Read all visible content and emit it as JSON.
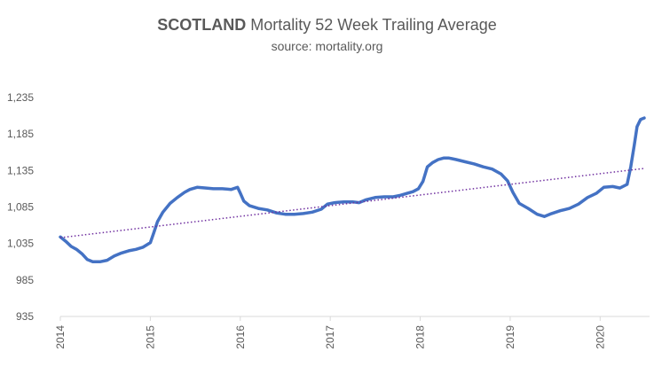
{
  "chart_data": {
    "type": "line",
    "title_bold": "SCOTLAND",
    "title_rest": " Mortality 52 Week Trailing Average",
    "subtitle": "source: mortality.org",
    "y_ticks": [
      935,
      985,
      1035,
      1085,
      1135,
      1185,
      1235
    ],
    "y_tick_labels": [
      "935",
      "985",
      "1,035",
      "1,085",
      "1,135",
      "1,185",
      "1,235"
    ],
    "x_ticks": [
      2014,
      2015,
      2016,
      2017,
      2018,
      2019,
      2020
    ],
    "x_tick_labels": [
      "2014",
      "2015",
      "2016",
      "2017",
      "2018",
      "2019",
      "2020"
    ],
    "xlim": [
      2014,
      2020.5
    ],
    "ylim": [
      935,
      1235
    ],
    "grid": false,
    "legend": "none",
    "series": [
      {
        "kind": "data",
        "color": "#4472c4",
        "points": [
          [
            2014.0,
            1044
          ],
          [
            2014.06,
            1038
          ],
          [
            2014.12,
            1031
          ],
          [
            2014.18,
            1027
          ],
          [
            2014.24,
            1021
          ],
          [
            2014.3,
            1013
          ],
          [
            2014.36,
            1010
          ],
          [
            2014.44,
            1010
          ],
          [
            2014.52,
            1012
          ],
          [
            2014.6,
            1018
          ],
          [
            2014.68,
            1022
          ],
          [
            2014.76,
            1025
          ],
          [
            2014.84,
            1027
          ],
          [
            2014.92,
            1030
          ],
          [
            2015.0,
            1036
          ],
          [
            2015.04,
            1050
          ],
          [
            2015.08,
            1065
          ],
          [
            2015.14,
            1078
          ],
          [
            2015.22,
            1090
          ],
          [
            2015.3,
            1098
          ],
          [
            2015.38,
            1105
          ],
          [
            2015.44,
            1109
          ],
          [
            2015.52,
            1112
          ],
          [
            2015.62,
            1111
          ],
          [
            2015.7,
            1110
          ],
          [
            2015.8,
            1110
          ],
          [
            2015.9,
            1109
          ],
          [
            2015.97,
            1112
          ],
          [
            2016.0,
            1104
          ],
          [
            2016.04,
            1093
          ],
          [
            2016.1,
            1087
          ],
          [
            2016.2,
            1083
          ],
          [
            2016.3,
            1081
          ],
          [
            2016.4,
            1077
          ],
          [
            2016.5,
            1075
          ],
          [
            2016.6,
            1075
          ],
          [
            2016.7,
            1076
          ],
          [
            2016.8,
            1078
          ],
          [
            2016.9,
            1082
          ],
          [
            2016.97,
            1089
          ],
          [
            2017.05,
            1091
          ],
          [
            2017.15,
            1092
          ],
          [
            2017.25,
            1092
          ],
          [
            2017.32,
            1091
          ],
          [
            2017.4,
            1095
          ],
          [
            2017.5,
            1098
          ],
          [
            2017.6,
            1099
          ],
          [
            2017.7,
            1099
          ],
          [
            2017.78,
            1101
          ],
          [
            2017.86,
            1104
          ],
          [
            2017.92,
            1106
          ],
          [
            2017.98,
            1110
          ],
          [
            2018.03,
            1120
          ],
          [
            2018.08,
            1140
          ],
          [
            2018.14,
            1146
          ],
          [
            2018.2,
            1150
          ],
          [
            2018.26,
            1152
          ],
          [
            2018.32,
            1152
          ],
          [
            2018.4,
            1150
          ],
          [
            2018.5,
            1147
          ],
          [
            2018.6,
            1144
          ],
          [
            2018.7,
            1140
          ],
          [
            2018.8,
            1137
          ],
          [
            2018.9,
            1130
          ],
          [
            2018.97,
            1121
          ],
          [
            2019.03,
            1105
          ],
          [
            2019.1,
            1090
          ],
          [
            2019.2,
            1083
          ],
          [
            2019.3,
            1075
          ],
          [
            2019.38,
            1072
          ],
          [
            2019.46,
            1076
          ],
          [
            2019.56,
            1080
          ],
          [
            2019.66,
            1083
          ],
          [
            2019.76,
            1089
          ],
          [
            2019.86,
            1098
          ],
          [
            2019.96,
            1104
          ],
          [
            2020.04,
            1112
          ],
          [
            2020.14,
            1113
          ],
          [
            2020.22,
            1111
          ],
          [
            2020.3,
            1116
          ],
          [
            2020.34,
            1140
          ],
          [
            2020.38,
            1170
          ],
          [
            2020.41,
            1195
          ],
          [
            2020.45,
            1205
          ],
          [
            2020.49,
            1207
          ]
        ]
      },
      {
        "kind": "trend",
        "color": "#7030a0",
        "points": [
          [
            2014.0,
            1043
          ],
          [
            2020.5,
            1138
          ]
        ]
      }
    ]
  }
}
